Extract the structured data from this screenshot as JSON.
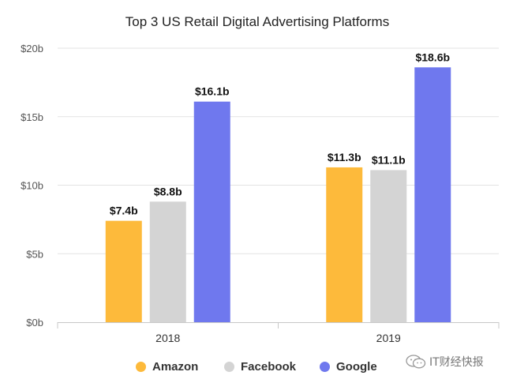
{
  "chart_data": {
    "type": "bar",
    "title": "Top 3 US Retail Digital Advertising Platforms",
    "categories": [
      "2018",
      "2019"
    ],
    "ylim": [
      0,
      20
    ],
    "yticks": [
      0,
      5,
      10,
      15,
      20
    ],
    "ytick_labels": [
      "$0b",
      "$5b",
      "$10b",
      "$15b",
      "$20b"
    ],
    "grid": true,
    "legend_position": "bottom",
    "series": [
      {
        "name": "Amazon",
        "color": "#FDBA3B",
        "values": [
          7.4,
          11.3
        ],
        "labels": [
          "$7.4b",
          "$11.3b"
        ]
      },
      {
        "name": "Facebook",
        "color": "#D4D4D4",
        "values": [
          8.8,
          11.1
        ],
        "labels": [
          "$8.8b",
          "$11.1b"
        ]
      },
      {
        "name": "Google",
        "color": "#6F78EE",
        "values": [
          16.1,
          18.6
        ],
        "labels": [
          "$16.1b",
          "$18.6b"
        ]
      }
    ]
  },
  "watermark": {
    "text": "IT财经快报",
    "icon": "wechat-icon"
  }
}
